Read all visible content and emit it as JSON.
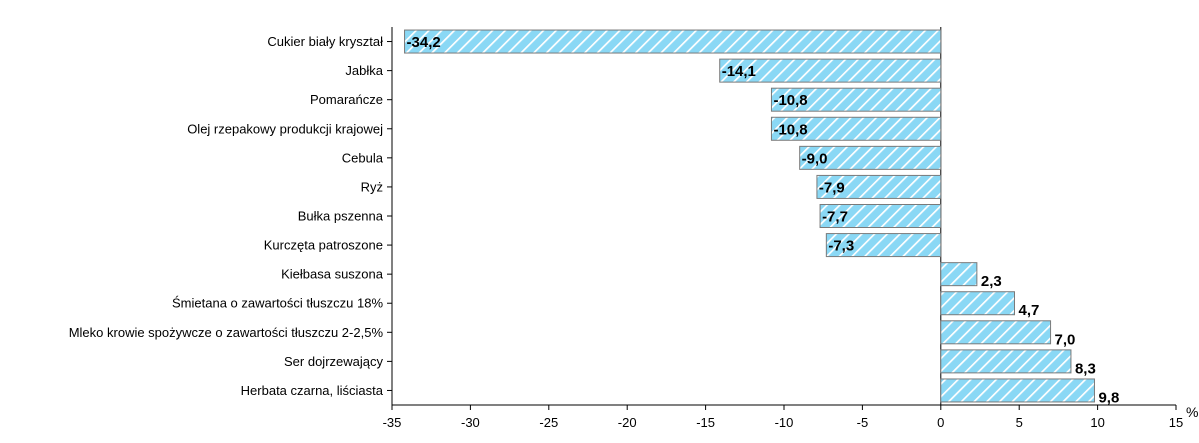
{
  "chart_data": {
    "type": "bar",
    "orientation": "horizontal",
    "categories": [
      "Cukier biały kryształ",
      "Jabłka",
      "Pomarańcze",
      "Olej rzepakowy produkcji krajowej",
      "Cebula",
      "Ryż",
      "Bułka pszenna",
      "Kurczęta patroszone",
      "Kiełbasa suszona",
      "Śmietana o zawartości tłuszczu 18%",
      "Mleko krowie spożywcze o zawartości tłuszczu 2-2,5%",
      "Ser dojrzewający",
      "Herbata czarna, liściasta"
    ],
    "values": [
      -34.2,
      -14.1,
      -10.8,
      -10.8,
      -9.0,
      -7.9,
      -7.7,
      -7.3,
      2.3,
      4.7,
      7.0,
      8.3,
      9.8
    ],
    "value_labels": [
      "-34,2",
      "-14,1",
      "-10,8",
      "-10,8",
      "-9,0",
      "-7,9",
      "-7,7",
      "-7,3",
      "2,3",
      "4,7",
      "7,0",
      "8,3",
      "9,8"
    ],
    "xlim": [
      -35,
      15
    ],
    "xticks": [
      -35,
      -30,
      -25,
      -20,
      -15,
      -10,
      -5,
      0,
      5,
      10,
      15
    ],
    "unit": "%",
    "grid": false,
    "colors": {
      "bar_fill": "#8ad8f5",
      "bar_hatch": "#ffffff",
      "bar_edge": "#7a7a7a",
      "axis": "#000000"
    }
  }
}
